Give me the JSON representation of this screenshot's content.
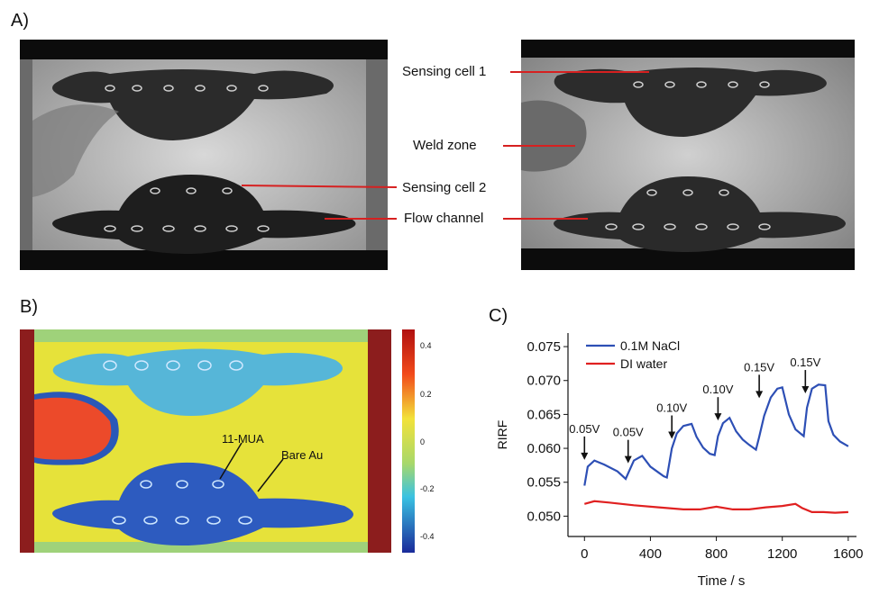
{
  "panels": {
    "a": "A)",
    "b": "B)",
    "c": "C)"
  },
  "panel_a": {
    "callouts": [
      "Sensing cell 1",
      "Weld zone",
      "Sensing cell 2",
      "Flow channel"
    ]
  },
  "panel_b": {
    "colorbar_ticks": [
      "0.4",
      "0.2",
      "0",
      "-0.2",
      "-0.4"
    ],
    "annotations": [
      "11-MUA",
      "Bare Au"
    ]
  },
  "chart_data": {
    "type": "line",
    "title": "",
    "xlabel": "Time / s",
    "ylabel": "RIRF",
    "xlim": [
      -100,
      1650
    ],
    "ylim": [
      0.047,
      0.077
    ],
    "xticks": [
      0,
      400,
      800,
      1200,
      1600
    ],
    "yticks": [
      0.05,
      0.055,
      0.06,
      0.065,
      0.07,
      0.075
    ],
    "ytick_labels": [
      "0.050",
      "0.055",
      "0.060",
      "0.065",
      "0.070",
      "0.075"
    ],
    "legend_position": "top-left",
    "series": [
      {
        "name": "0.1M NaCl",
        "color": "#2d4fb5",
        "x": [
          0,
          20,
          60,
          120,
          200,
          250,
          265,
          300,
          350,
          400,
          440,
          480,
          500,
          530,
          560,
          600,
          650,
          680,
          720,
          760,
          790,
          810,
          840,
          880,
          920,
          960,
          1000,
          1040,
          1060,
          1090,
          1130,
          1170,
          1200,
          1240,
          1280,
          1330,
          1350,
          1380,
          1420,
          1460,
          1480,
          1510,
          1550,
          1600
        ],
        "values": [
          0.0545,
          0.0573,
          0.0582,
          0.0576,
          0.0566,
          0.0555,
          0.0563,
          0.0582,
          0.0589,
          0.0573,
          0.0566,
          0.0559,
          0.0557,
          0.06,
          0.0622,
          0.0633,
          0.0636,
          0.0617,
          0.0601,
          0.0592,
          0.059,
          0.0618,
          0.0637,
          0.0645,
          0.0625,
          0.0613,
          0.0605,
          0.0598,
          0.0617,
          0.0648,
          0.0675,
          0.0688,
          0.069,
          0.065,
          0.0628,
          0.0618,
          0.066,
          0.0688,
          0.0694,
          0.0693,
          0.064,
          0.062,
          0.061,
          0.0603
        ]
      },
      {
        "name": "DI water",
        "color": "#e02020",
        "x": [
          0,
          60,
          150,
          300,
          450,
          600,
          700,
          800,
          900,
          1000,
          1100,
          1200,
          1280,
          1320,
          1380,
          1450,
          1520,
          1600
        ],
        "values": [
          0.0518,
          0.0522,
          0.052,
          0.0516,
          0.0513,
          0.051,
          0.051,
          0.0514,
          0.051,
          0.051,
          0.0513,
          0.0515,
          0.0518,
          0.0512,
          0.0506,
          0.0506,
          0.0505,
          0.0506
        ]
      }
    ],
    "arrows": [
      {
        "label": "0.05V",
        "x": 0,
        "y": 0.0583
      },
      {
        "label": "0.05V",
        "x": 265,
        "y": 0.0578
      },
      {
        "label": "0.10V",
        "x": 530,
        "y": 0.0614
      },
      {
        "label": "0.10V",
        "x": 810,
        "y": 0.0641
      },
      {
        "label": "0.15V",
        "x": 1060,
        "y": 0.0674
      },
      {
        "label": "0.15V",
        "x": 1340,
        "y": 0.0681
      }
    ]
  }
}
